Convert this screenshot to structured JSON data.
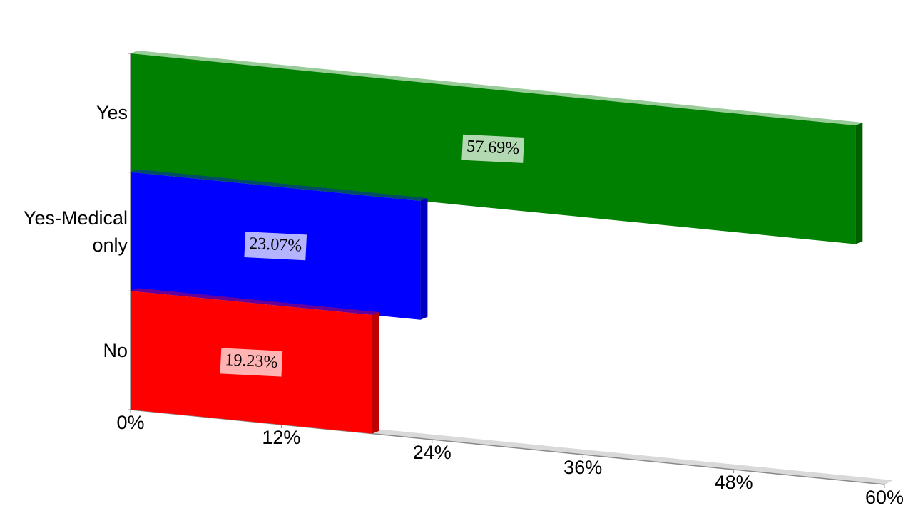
{
  "chart_data": {
    "type": "bar",
    "orientation": "horizontal",
    "categories": [
      "Yes",
      "Yes-Medical only",
      "No"
    ],
    "values": [
      57.69,
      23.07,
      19.23
    ],
    "value_labels": [
      "57.69%",
      "23.07%",
      "19.23%"
    ],
    "colors": [
      "#008000",
      "#0000ff",
      "#ff0000"
    ],
    "xlim": [
      0,
      60
    ],
    "xticks": [
      {
        "value": 0,
        "label": "0%"
      },
      {
        "value": 12,
        "label": "12%"
      },
      {
        "value": 24,
        "label": "24%"
      },
      {
        "value": 36,
        "label": "36%"
      },
      {
        "value": 48,
        "label": "48%"
      },
      {
        "value": 60,
        "label": "60%"
      }
    ]
  }
}
